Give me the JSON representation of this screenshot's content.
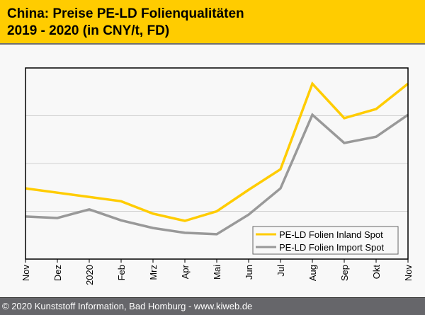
{
  "header": {
    "title_line1": "China: Preise PE-LD Folienqualitäten",
    "title_line2": "2019 - 2020 (in CNY/t, FD)"
  },
  "footer": {
    "text": "© 2020 Kunststoff Information, Bad Homburg - www.kiweb.de"
  },
  "colors": {
    "header_bg": "#ffcc00",
    "inland": "#ffcc00",
    "import": "#999999",
    "grid": "#d0d0d0"
  },
  "chart_data": {
    "type": "line",
    "title": "China: Preise PE-LD Folienqualitäten 2019 - 2020 (in CNY/t, FD)",
    "xlabel": "",
    "ylabel": "",
    "y_unit_note": "No y-axis tick labels shown; values given in relative gridline units (0 = axis bottom, each gridline = 1)",
    "ylim": [
      0,
      4
    ],
    "grid": true,
    "legend_position": "bottom-right",
    "categories": [
      "Nov",
      "Dez",
      "2020",
      "Feb",
      "Mrz",
      "Apr",
      "Mai",
      "Jun",
      "Jul",
      "Aug",
      "Sep",
      "Okt",
      "Nov"
    ],
    "series": [
      {
        "name": "PE-LD Folien Inland Spot",
        "color": "#ffcc00",
        "values": [
          1.48,
          1.39,
          1.3,
          1.21,
          0.95,
          0.8,
          1.0,
          1.45,
          1.88,
          3.67,
          2.95,
          3.14,
          3.67
        ]
      },
      {
        "name": "PE-LD Folien Import Spot",
        "color": "#999999",
        "values": [
          0.89,
          0.86,
          1.04,
          0.81,
          0.65,
          0.55,
          0.52,
          0.93,
          1.48,
          3.02,
          2.43,
          2.56,
          3.02
        ]
      }
    ]
  }
}
